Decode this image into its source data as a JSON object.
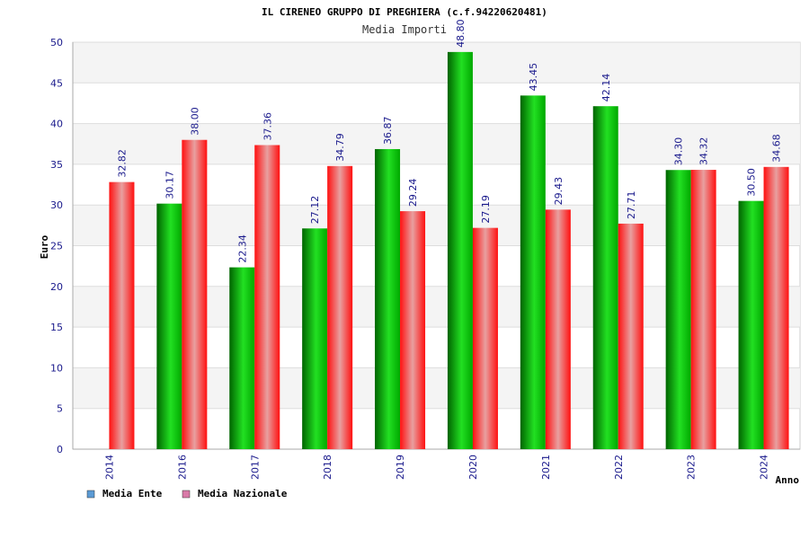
{
  "chart_data": {
    "type": "bar",
    "title": "IL CIRENEO GRUPPO DI PREGHIERA (c.f.94220620481)",
    "subtitle": "Media Importi",
    "xlabel": "Anno",
    "ylabel": "Euro",
    "ylim": [
      0,
      50
    ],
    "yticks": [
      0,
      5,
      10,
      15,
      20,
      25,
      30,
      35,
      40,
      45,
      50
    ],
    "grid": true,
    "legend_position": "bottom-left",
    "categories": [
      "2014",
      "2016",
      "2017",
      "2018",
      "2019",
      "2020",
      "2021",
      "2022",
      "2023",
      "2024"
    ],
    "series": [
      {
        "name": "Media Ente",
        "color": "#00b000",
        "legend_color": "#5b9bd5",
        "values": [
          null,
          30.17,
          22.34,
          27.12,
          36.87,
          48.8,
          43.45,
          42.14,
          34.3,
          30.5
        ],
        "labels": [
          "",
          "30.17",
          "22.34",
          "27.12",
          "36.87",
          "48.80",
          "43.45",
          "42.14",
          "34.30",
          "30.50"
        ]
      },
      {
        "name": "Media Nazionale",
        "color": "#e81818",
        "legend_color": "#d97aa8",
        "values": [
          32.82,
          38.0,
          37.36,
          34.79,
          29.24,
          27.19,
          29.43,
          27.71,
          34.32,
          34.68
        ],
        "labels": [
          "32.82",
          "38.00",
          "37.36",
          "34.79",
          "29.24",
          "27.19",
          "29.43",
          "27.71",
          "34.32",
          "34.68"
        ]
      }
    ]
  }
}
